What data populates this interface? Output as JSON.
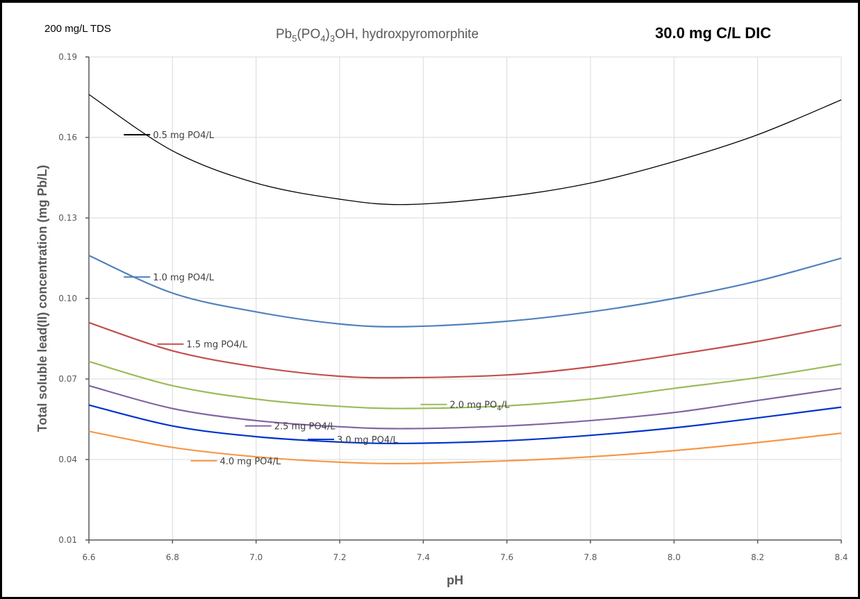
{
  "header": {
    "tds": "200 mg/L TDS",
    "title_prefix": "Pb",
    "title_sub1": "5",
    "title_mid": "(PO",
    "title_sub2": "4",
    "title_mid2": ")",
    "title_sub3": "3",
    "title_suffix": "OH, hydroxpyromorphite",
    "dic": "30.0 mg C/L DIC"
  },
  "chart_data": {
    "type": "line",
    "title": "Pb5(PO4)3OH, hydroxpyromorphite",
    "xlabel": "pH",
    "ylabel": "Total soluble lead(II) concentration (mg Pb/L)",
    "xlim": [
      6.6,
      8.4
    ],
    "ylim": [
      0.01,
      0.19
    ],
    "xticks": [
      "6.6",
      "6.8",
      "7.0",
      "7.2",
      "7.4",
      "7.6",
      "7.8",
      "8.0",
      "8.2",
      "8.4"
    ],
    "yticks": [
      "0.01",
      "0.04",
      "0.07",
      "0.10",
      "0.13",
      "0.16",
      "0.19"
    ],
    "grid": true,
    "legend": "inline labels",
    "x": [
      6.6,
      6.8,
      7.0,
      7.2,
      7.36,
      7.6,
      7.8,
      8.0,
      8.2,
      8.4
    ],
    "series": [
      {
        "name": "0.5 mg PO4/L",
        "label_parts": [
          "0.5 mg PO4/L"
        ],
        "color": "#000000",
        "values": [
          0.176,
          0.155,
          0.143,
          0.137,
          0.135,
          0.138,
          0.143,
          0.151,
          0.161,
          0.174
        ],
        "label_at": [
          6.73,
          0.161
        ]
      },
      {
        "name": "1.0 mg PO4/L",
        "label_parts": [
          "1.0 mg PO4/L"
        ],
        "color": "#4f81bd",
        "values": [
          0.116,
          0.102,
          0.095,
          0.0905,
          0.0895,
          0.0915,
          0.095,
          0.1,
          0.1065,
          0.115
        ],
        "label_at": [
          6.73,
          0.108
        ]
      },
      {
        "name": "1.5 mg PO4/L",
        "label_parts": [
          "1.5 mg PO4/L"
        ],
        "color": "#c0504d",
        "values": [
          0.091,
          0.0805,
          0.0745,
          0.071,
          0.0705,
          0.0715,
          0.0745,
          0.079,
          0.084,
          0.09
        ],
        "label_at": [
          6.81,
          0.083
        ]
      },
      {
        "name": "2.0 mg PO4/L",
        "label_parts": [
          "2.0 mg PO",
          "4",
          "/L"
        ],
        "color": "#9bbb59",
        "values": [
          0.0765,
          0.0675,
          0.0625,
          0.0598,
          0.059,
          0.06,
          0.0625,
          0.0665,
          0.0705,
          0.0755
        ],
        "label_at": [
          7.44,
          0.0605
        ]
      },
      {
        "name": "2.5 mg PO4/L",
        "label_parts": [
          "2.5 mg PO4/L"
        ],
        "color": "#8064a2",
        "values": [
          0.0675,
          0.059,
          0.0545,
          0.0522,
          0.0515,
          0.0525,
          0.0545,
          0.0575,
          0.062,
          0.0665
        ],
        "label_at": [
          7.02,
          0.0525
        ]
      },
      {
        "name": "3.0 mg PO4/L",
        "label_parts": [
          "3.0 mg PO4/L"
        ],
        "color": "#0033cc",
        "values": [
          0.0603,
          0.0525,
          0.0485,
          0.0465,
          0.046,
          0.047,
          0.049,
          0.0518,
          0.0555,
          0.0595
        ],
        "label_at": [
          7.17,
          0.0475
        ]
      },
      {
        "name": "4.0 mg PO4/L",
        "label_parts": [
          "4.0 mg PO4/L"
        ],
        "color": "#f79646",
        "values": [
          0.0505,
          0.0445,
          0.041,
          0.039,
          0.0385,
          0.0395,
          0.041,
          0.0433,
          0.0463,
          0.0498
        ],
        "label_at": [
          6.89,
          0.0395
        ]
      }
    ]
  }
}
